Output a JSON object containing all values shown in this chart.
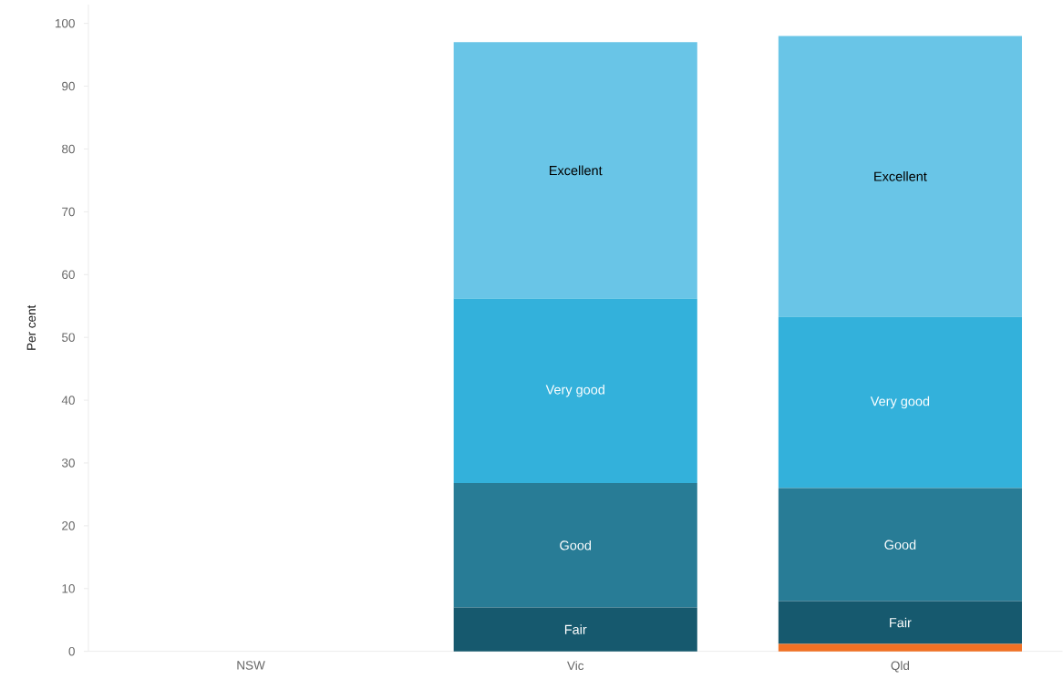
{
  "chart_data": {
    "type": "bar",
    "stacked": true,
    "ylabel": "Per cent",
    "categories": [
      "NSW",
      "Vic",
      "Qld"
    ],
    "series": [
      {
        "color": "#f07125",
        "values": [
          null,
          0,
          1.2
        ]
      },
      {
        "name": "Fair",
        "color": "#16596e",
        "values": [
          null,
          7.0,
          6.8
        ]
      },
      {
        "name": "Good",
        "color": "#287c96",
        "values": [
          null,
          19.8,
          18.0
        ]
      },
      {
        "name": "Very good",
        "color": "#33b1db",
        "values": [
          null,
          29.4,
          27.3
        ]
      },
      {
        "name": "Excellent",
        "color": "#69c5e7",
        "values": [
          null,
          40.8,
          44.7
        ]
      }
    ],
    "ylim": [
      0,
      103
    ],
    "yticks": [
      0,
      10,
      20,
      30,
      40,
      50,
      60,
      70,
      80,
      90,
      100
    ],
    "grid": false,
    "legend": false
  }
}
